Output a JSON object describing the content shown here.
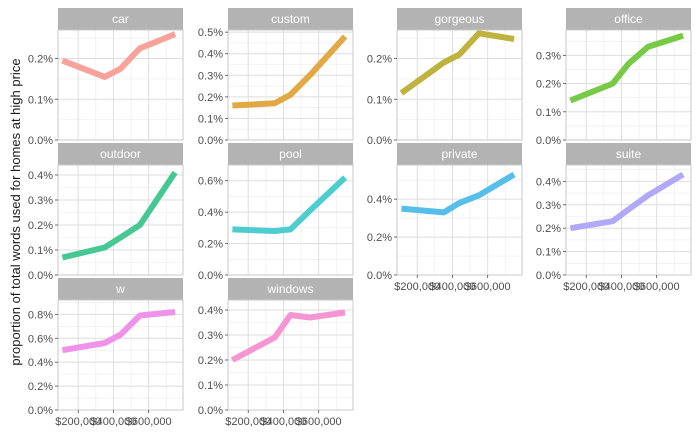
{
  "chart_data": {
    "type": "line",
    "layout": "facet_wrap",
    "ylabel": "proportion of total words used for homes at high price",
    "xlabel": "",
    "x_ticks": [
      {
        "value": 200000,
        "label": "$200,000"
      },
      {
        "value": 400000,
        "label": "$400,000"
      },
      {
        "value": 600000,
        "label": "$600,000"
      }
    ],
    "xlim": [
      85000,
      795000
    ],
    "panel_background": "#ffffff",
    "strip_background": "#b3b3b3",
    "grid": true,
    "panels": [
      {
        "name": "car",
        "color": "#F8A29A",
        "ylim": [
          0,
          0.0027
        ],
        "y_ticks": [
          {
            "value": 0,
            "label": "0.0%"
          },
          {
            "value": 0.001,
            "label": "0.1%"
          },
          {
            "value": 0.002,
            "label": "0.2%"
          }
        ],
        "x": [
          110000,
          350000,
          440000,
          550000,
          750000
        ],
        "y": [
          0.00195,
          0.00155,
          0.00175,
          0.00225,
          0.0026
        ]
      },
      {
        "name": "custom",
        "color": "#E1A844",
        "ylim": [
          0,
          0.0051
        ],
        "y_ticks": [
          {
            "value": 0,
            "label": "0.0%"
          },
          {
            "value": 0.001,
            "label": "0.1%"
          },
          {
            "value": 0.002,
            "label": "0.2%"
          },
          {
            "value": 0.003,
            "label": "0.3%"
          },
          {
            "value": 0.004,
            "label": "0.4%"
          },
          {
            "value": 0.005,
            "label": "0.5%"
          }
        ],
        "x": [
          110000,
          350000,
          440000,
          550000,
          750000
        ],
        "y": [
          0.0016,
          0.0017,
          0.0021,
          0.003,
          0.0048
        ]
      },
      {
        "name": "gorgeous",
        "color": "#BDB33E",
        "ylim": [
          0,
          0.0027
        ],
        "y_ticks": [
          {
            "value": 0,
            "label": "0.0%"
          },
          {
            "value": 0.001,
            "label": "0.1%"
          },
          {
            "value": 0.002,
            "label": "0.2%"
          }
        ],
        "x": [
          110000,
          350000,
          440000,
          550000,
          750000
        ],
        "y": [
          0.00115,
          0.0019,
          0.0021,
          0.00262,
          0.00248
        ]
      },
      {
        "name": "office",
        "color": "#76CA46",
        "ylim": [
          0,
          0.0039
        ],
        "y_ticks": [
          {
            "value": 0,
            "label": "0.0%"
          },
          {
            "value": 0.001,
            "label": "0.1%"
          },
          {
            "value": 0.002,
            "label": "0.2%"
          },
          {
            "value": 0.003,
            "label": "0.3%"
          }
        ],
        "x": [
          110000,
          350000,
          440000,
          550000,
          750000
        ],
        "y": [
          0.0014,
          0.002,
          0.0027,
          0.0033,
          0.0037
        ]
      },
      {
        "name": "outdoor",
        "color": "#45C893",
        "ylim": [
          0,
          0.0044
        ],
        "y_ticks": [
          {
            "value": 0,
            "label": "0.0%"
          },
          {
            "value": 0.001,
            "label": "0.1%"
          },
          {
            "value": 0.002,
            "label": "0.2%"
          },
          {
            "value": 0.003,
            "label": "0.3%"
          },
          {
            "value": 0.004,
            "label": "0.4%"
          }
        ],
        "x": [
          110000,
          350000,
          440000,
          550000,
          750000
        ],
        "y": [
          0.0007,
          0.0011,
          0.0015,
          0.002,
          0.0041
        ]
      },
      {
        "name": "pool",
        "color": "#4ECDD0",
        "ylim": [
          0,
          0.007
        ],
        "y_ticks": [
          {
            "value": 0,
            "label": "0.0%"
          },
          {
            "value": 0.002,
            "label": "0.2%"
          },
          {
            "value": 0.004,
            "label": "0.4%"
          },
          {
            "value": 0.006,
            "label": "0.6%"
          }
        ],
        "x": [
          110000,
          350000,
          440000,
          550000,
          750000
        ],
        "y": [
          0.0029,
          0.0028,
          0.0029,
          0.0041,
          0.0062
        ]
      },
      {
        "name": "private",
        "color": "#56BEEB",
        "ylim": [
          0,
          0.0058
        ],
        "y_ticks": [
          {
            "value": 0,
            "label": "0.0%"
          },
          {
            "value": 0.002,
            "label": "0.2%"
          },
          {
            "value": 0.004,
            "label": "0.4%"
          }
        ],
        "x": [
          110000,
          350000,
          440000,
          550000,
          750000
        ],
        "y": [
          0.0035,
          0.0033,
          0.0038,
          0.0042,
          0.0053
        ]
      },
      {
        "name": "suite",
        "color": "#B1A9F8",
        "ylim": [
          0,
          0.0047
        ],
        "y_ticks": [
          {
            "value": 0,
            "label": "0.0%"
          },
          {
            "value": 0.001,
            "label": "0.1%"
          },
          {
            "value": 0.002,
            "label": "0.2%"
          },
          {
            "value": 0.003,
            "label": "0.3%"
          },
          {
            "value": 0.004,
            "label": "0.4%"
          }
        ],
        "x": [
          110000,
          350000,
          440000,
          550000,
          750000
        ],
        "y": [
          0.002,
          0.0023,
          0.0028,
          0.0034,
          0.0043
        ]
      },
      {
        "name": "w",
        "color": "#EF92E9",
        "ylim": [
          0,
          0.0092
        ],
        "y_ticks": [
          {
            "value": 0,
            "label": "0.0%"
          },
          {
            "value": 0.002,
            "label": "0.2%"
          },
          {
            "value": 0.004,
            "label": "0.4%"
          },
          {
            "value": 0.006,
            "label": "0.6%"
          },
          {
            "value": 0.008,
            "label": "0.8%"
          }
        ],
        "x": [
          110000,
          350000,
          440000,
          550000,
          750000
        ],
        "y": [
          0.005,
          0.0056,
          0.0063,
          0.0079,
          0.0082
        ]
      },
      {
        "name": "windows",
        "color": "#F595D2",
        "ylim": [
          0,
          0.0044
        ],
        "y_ticks": [
          {
            "value": 0,
            "label": "0.0%"
          },
          {
            "value": 0.001,
            "label": "0.1%"
          },
          {
            "value": 0.002,
            "label": "0.2%"
          },
          {
            "value": 0.003,
            "label": "0.3%"
          },
          {
            "value": 0.004,
            "label": "0.4%"
          }
        ],
        "x": [
          110000,
          350000,
          440000,
          550000,
          750000
        ],
        "y": [
          0.002,
          0.0029,
          0.0038,
          0.0037,
          0.0039
        ]
      }
    ]
  }
}
